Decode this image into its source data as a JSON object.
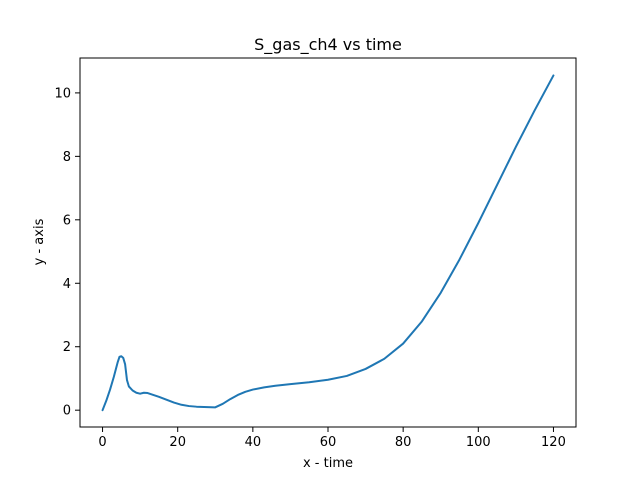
{
  "chart_data": {
    "type": "line",
    "title": "S_gas_ch4 vs time",
    "xlabel": "x - time",
    "ylabel": "y - axis",
    "xlim": [
      -6,
      126
    ],
    "ylim": [
      -0.53,
      11.1
    ],
    "xticks": [
      0,
      20,
      40,
      60,
      80,
      100,
      120
    ],
    "yticks": [
      0,
      2,
      4,
      6,
      8,
      10
    ],
    "grid": false,
    "series": [
      {
        "color": "#1f77b4",
        "x": [
          0,
          1,
          2,
          3,
          4,
          4.5,
          5,
          5.5,
          6,
          6.5,
          7,
          8,
          9,
          10,
          11,
          12,
          13,
          15,
          17,
          19,
          21,
          23,
          25,
          27,
          30,
          32,
          34,
          36,
          38,
          40,
          43,
          46,
          50,
          55,
          60,
          65,
          70,
          75,
          80,
          85,
          90,
          95,
          100,
          105,
          110,
          115,
          120
        ],
        "values": [
          0,
          0.3,
          0.65,
          1.05,
          1.5,
          1.68,
          1.7,
          1.65,
          1.45,
          0.95,
          0.75,
          0.62,
          0.55,
          0.52,
          0.55,
          0.54,
          0.5,
          0.42,
          0.33,
          0.24,
          0.17,
          0.13,
          0.11,
          0.1,
          0.09,
          0.2,
          0.35,
          0.48,
          0.58,
          0.65,
          0.72,
          0.77,
          0.82,
          0.88,
          0.96,
          1.08,
          1.3,
          1.62,
          2.1,
          2.8,
          3.7,
          4.75,
          5.9,
          7.1,
          8.3,
          9.45,
          10.55
        ]
      }
    ]
  }
}
